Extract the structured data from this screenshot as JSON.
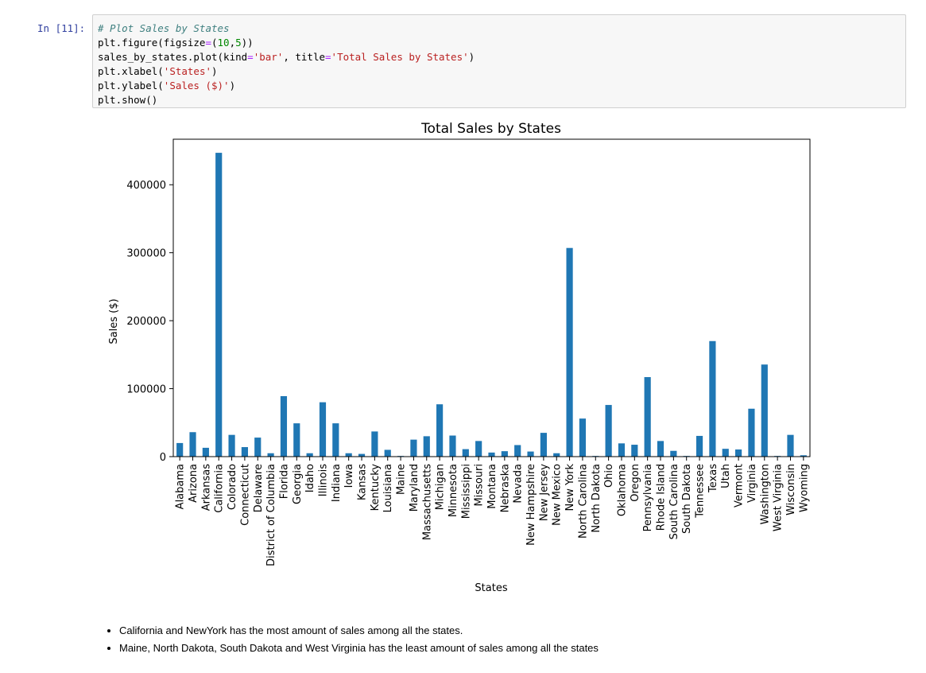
{
  "cell": {
    "prompt": "In [11]:",
    "code": {
      "line1": "# Plot Sales by States",
      "line2_a": "plt.figure(figsize",
      "line2_eq": "=",
      "line2_b": "(",
      "line2_n1": "10",
      "line2_c": ",",
      "line2_n2": "5",
      "line2_d": "))",
      "line3_a": "sales_by_states.plot(kind",
      "line3_eq1": "=",
      "line3_s1": "'bar'",
      "line3_b": ", title",
      "line3_eq2": "=",
      "line3_s2": "'Total Sales by States'",
      "line3_c": ")",
      "line4_a": "plt.xlabel(",
      "line4_s": "'States'",
      "line4_b": ")",
      "line5_a": "plt.ylabel(",
      "line5_s": "'Sales ($)'",
      "line5_b": ")",
      "line6": "plt.show()"
    }
  },
  "chart_data": {
    "type": "bar",
    "title": "Total Sales by States",
    "xlabel": "States",
    "ylabel": "Sales ($)",
    "ylim": [
      0,
      467000
    ],
    "yticks": [
      0,
      100000,
      200000,
      300000,
      400000
    ],
    "ytick_labels": [
      "0",
      "100000",
      "200000",
      "300000",
      "400000"
    ],
    "bar_color": "#1f77b4",
    "grid": false,
    "categories": [
      "Alabama",
      "Arizona",
      "Arkansas",
      "California",
      "Colorado",
      "Connecticut",
      "Delaware",
      "District of Columbia",
      "Florida",
      "Georgia",
      "Idaho",
      "Illinois",
      "Indiana",
      "Iowa",
      "Kansas",
      "Kentucky",
      "Louisiana",
      "Maine",
      "Maryland",
      "Massachusetts",
      "Michigan",
      "Minnesota",
      "Mississippi",
      "Missouri",
      "Montana",
      "Nebraska",
      "Nevada",
      "New Hampshire",
      "New Jersey",
      "New Mexico",
      "New York",
      "North Carolina",
      "North Dakota",
      "Ohio",
      "Oklahoma",
      "Oregon",
      "Pennsylvania",
      "Rhode Island",
      "South Carolina",
      "South Dakota",
      "Tennessee",
      "Texas",
      "Utah",
      "Vermont",
      "Virginia",
      "Washington",
      "West Virginia",
      "Wisconsin",
      "Wyoming"
    ],
    "values": [
      20000,
      36000,
      13000,
      447000,
      32000,
      14000,
      28000,
      5000,
      89000,
      49000,
      5000,
      80000,
      49000,
      5000,
      4000,
      37000,
      10000,
      1000,
      25000,
      30000,
      77000,
      31000,
      11000,
      23000,
      6000,
      8000,
      17000,
      7500,
      35000,
      5000,
      307000,
      56000,
      1000,
      76000,
      19500,
      17500,
      117000,
      23000,
      8500,
      1000,
      30500,
      170000,
      11500,
      10500,
      70500,
      135500,
      1000,
      32000,
      2000
    ]
  },
  "notes": [
    "California and NewYork has the most amount of sales among all the states.",
    "Maine, North Dakota, South Dakota and West Virginia has the least amount of sales among all the states"
  ]
}
